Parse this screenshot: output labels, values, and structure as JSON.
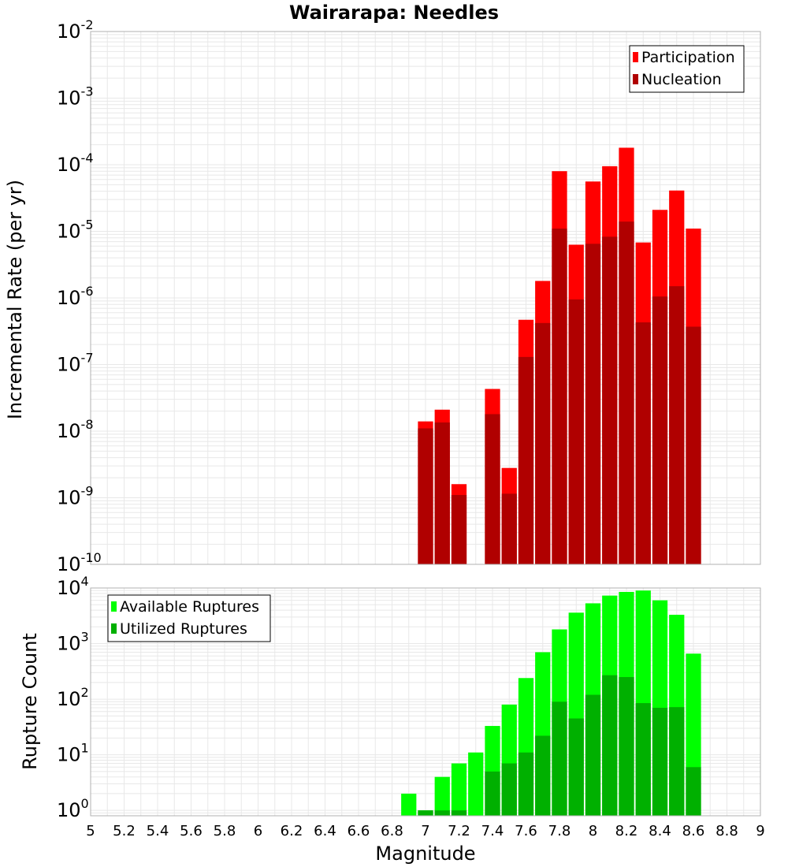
{
  "title": "Wairarapa: Needles",
  "xlabel": "Magnitude",
  "x_ticks": [
    "5",
    "5.2",
    "5.4",
    "5.6",
    "5.8",
    "6",
    "6.2",
    "6.4",
    "6.6",
    "6.8",
    "7",
    "7.2",
    "7.4",
    "7.6",
    "7.8",
    "8",
    "8.2",
    "8.4",
    "8.6",
    "8.8",
    "9"
  ],
  "colors": {
    "participation": "#ff0000",
    "nucleation": "#b00000",
    "available": "#00ff00",
    "utilized": "#00b000",
    "grid": "#e8e8e8",
    "frame": "#b0b0b0"
  },
  "chart_data": [
    {
      "type": "bar",
      "ylabel": "Incremental Rate (per yr)",
      "yscale": "log",
      "ylim": [
        1e-10,
        0.01
      ],
      "xlim": [
        5,
        9
      ],
      "y_tick_exponents": [
        "-10",
        "-9",
        "-8",
        "-7",
        "-6",
        "-5",
        "-4",
        "-3",
        "-2"
      ],
      "legend": {
        "position": "top-right",
        "entries": [
          "Participation",
          "Nucleation"
        ]
      },
      "x": [
        7.0,
        7.1,
        7.2,
        7.4,
        7.5,
        7.6,
        7.7,
        7.8,
        7.9,
        8.0,
        8.1,
        8.2,
        8.3,
        8.4,
        8.5,
        8.6
      ],
      "series": [
        {
          "name": "Participation",
          "values": [
            1.4e-08,
            2.1e-08,
            1.6e-09,
            4.3e-08,
            2.8e-09,
            4.7e-07,
            1.8e-06,
            8e-05,
            6.3e-06,
            5.6e-05,
            9.5e-05,
            0.00018,
            6.8e-06,
            2.1e-05,
            4.1e-05,
            1.1e-05
          ]
        },
        {
          "name": "Nucleation",
          "values": [
            1.1e-08,
            1.35e-08,
            1.1e-09,
            1.8e-08,
            1.15e-09,
            1.3e-07,
            4.2e-07,
            1.1e-05,
            9.5e-07,
            6.5e-06,
            8.3e-06,
            1.4e-05,
            4.3e-07,
            1.05e-06,
            1.5e-06,
            3.7e-07
          ]
        }
      ]
    },
    {
      "type": "bar",
      "ylabel": "Rupture Count",
      "yscale": "log",
      "ylim": [
        0.8,
        10000
      ],
      "xlim": [
        5,
        9
      ],
      "y_tick_exponents": [
        "0",
        "1",
        "2",
        "3",
        "4"
      ],
      "legend": {
        "position": "top-left",
        "entries": [
          "Available Ruptures",
          "Utilized Ruptures"
        ]
      },
      "x": [
        6.9,
        7.0,
        7.1,
        7.2,
        7.3,
        7.4,
        7.5,
        7.6,
        7.7,
        7.8,
        7.9,
        8.0,
        8.1,
        8.2,
        8.3,
        8.4,
        8.5,
        8.6
      ],
      "series": [
        {
          "name": "Available Ruptures",
          "values": [
            2,
            1,
            4,
            7,
            11,
            33,
            80,
            240,
            700,
            1800,
            3600,
            5300,
            7300,
            8500,
            9000,
            6000,
            3300,
            660
          ]
        },
        {
          "name": "Utilized Ruptures",
          "values": [
            0,
            1,
            1,
            1,
            0,
            5,
            7,
            11,
            22,
            90,
            45,
            120,
            270,
            250,
            85,
            70,
            72,
            6
          ]
        }
      ]
    }
  ]
}
